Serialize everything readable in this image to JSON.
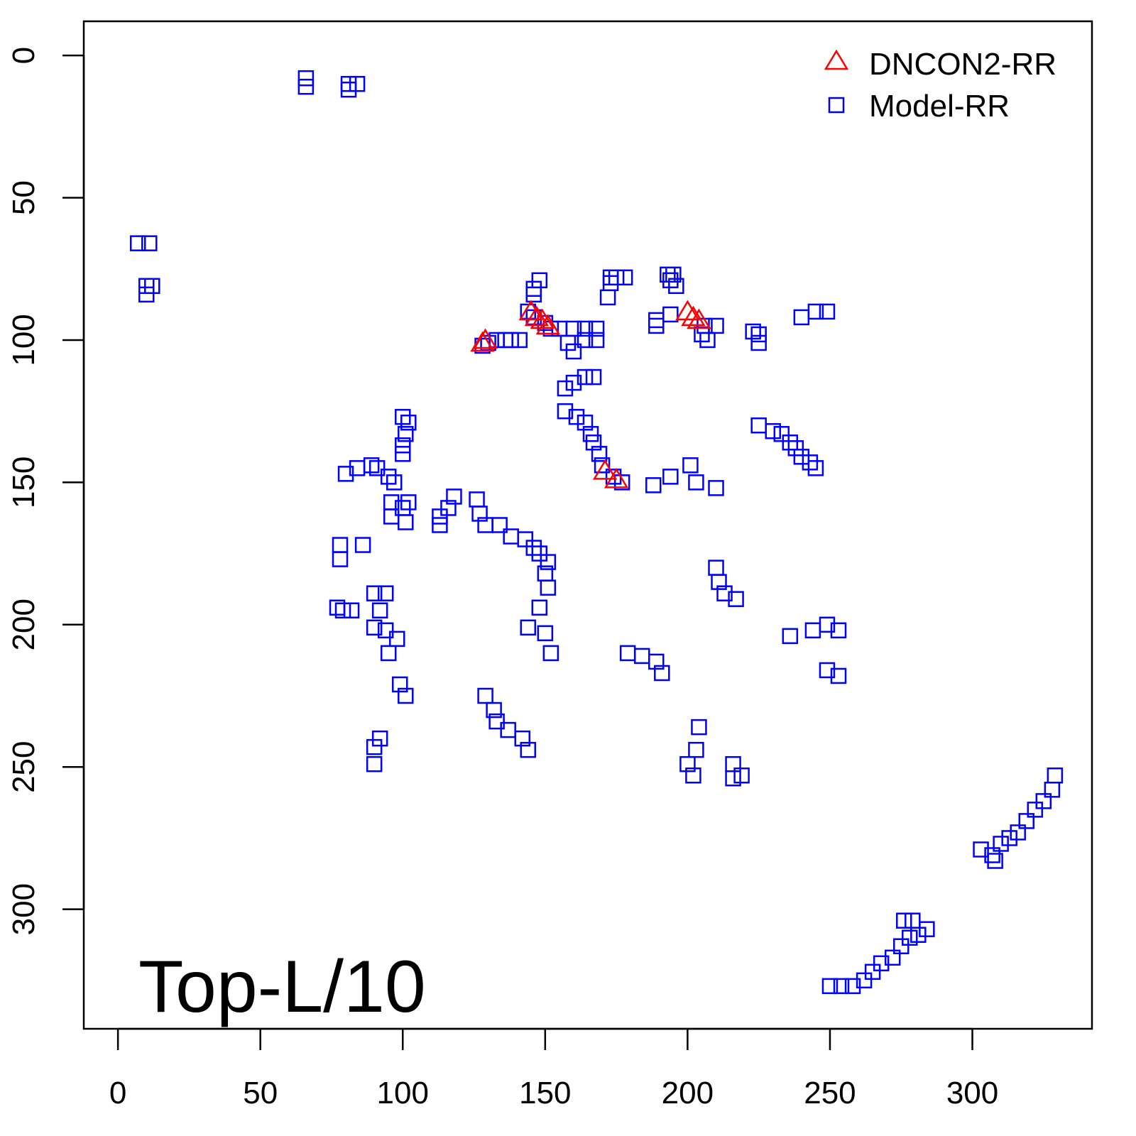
{
  "chart_data": {
    "type": "scatter",
    "title": "",
    "annotation": "Top-L/10",
    "xlabel": "",
    "ylabel": "",
    "xlim": [
      -12,
      342
    ],
    "ylim": [
      342,
      -12
    ],
    "y_inverted": true,
    "grid": false,
    "legend_position": "top-right",
    "x_ticks": [
      0,
      50,
      100,
      150,
      200,
      250,
      300
    ],
    "y_ticks": [
      0,
      50,
      100,
      150,
      200,
      250,
      300
    ],
    "x_tick_labels": [
      "0",
      "50",
      "100",
      "150",
      "200",
      "250",
      "300"
    ],
    "y_tick_labels": [
      "0",
      "50",
      "100",
      "150",
      "200",
      "250",
      "300"
    ],
    "series": [
      {
        "name": "DNCON2-RR",
        "marker": "triangle",
        "color": "#FF0000",
        "points": [
          [
            128,
            101
          ],
          [
            129,
            100
          ],
          [
            145,
            90
          ],
          [
            147,
            92
          ],
          [
            149,
            93
          ],
          [
            151,
            95
          ],
          [
            200,
            90
          ],
          [
            202,
            92
          ],
          [
            204,
            93
          ],
          [
            171,
            146
          ],
          [
            175,
            149
          ]
        ]
      },
      {
        "name": "Model-RR",
        "marker": "square",
        "color": "#0000FF",
        "points": [
          [
            66,
            8
          ],
          [
            66,
            11
          ],
          [
            81,
            10
          ],
          [
            84,
            10
          ],
          [
            81,
            12
          ],
          [
            7,
            66
          ],
          [
            11,
            66
          ],
          [
            10,
            81
          ],
          [
            12,
            81
          ],
          [
            10,
            84
          ],
          [
            128,
            102
          ],
          [
            130,
            101
          ],
          [
            133,
            100
          ],
          [
            136,
            100
          ],
          [
            138,
            100
          ],
          [
            141,
            100
          ],
          [
            148,
            79
          ],
          [
            146,
            82
          ],
          [
            146,
            84
          ],
          [
            144,
            90
          ],
          [
            146,
            92
          ],
          [
            150,
            94
          ],
          [
            152,
            96
          ],
          [
            155,
            96
          ],
          [
            160,
            96
          ],
          [
            164,
            96
          ],
          [
            168,
            96
          ],
          [
            164,
            100
          ],
          [
            168,
            100
          ],
          [
            158,
            101
          ],
          [
            160,
            104
          ],
          [
            173,
            78
          ],
          [
            175,
            78
          ],
          [
            178,
            78
          ],
          [
            173,
            80
          ],
          [
            172,
            85
          ],
          [
            193,
            77
          ],
          [
            195,
            77
          ],
          [
            194,
            79
          ],
          [
            196,
            81
          ],
          [
            189,
            93
          ],
          [
            189,
            95
          ],
          [
            194,
            91
          ],
          [
            206,
            95
          ],
          [
            205,
            98
          ],
          [
            207,
            100
          ],
          [
            210,
            95
          ],
          [
            223,
            97
          ],
          [
            225,
            98
          ],
          [
            225,
            101
          ],
          [
            240,
            92
          ],
          [
            245,
            90
          ],
          [
            249,
            90
          ],
          [
            157,
            117
          ],
          [
            160,
            115
          ],
          [
            164,
            113
          ],
          [
            167,
            113
          ],
          [
            157,
            125
          ],
          [
            161,
            127
          ],
          [
            164,
            129
          ],
          [
            166,
            133
          ],
          [
            167,
            136
          ],
          [
            169,
            140
          ],
          [
            170,
            144
          ],
          [
            174,
            148
          ],
          [
            177,
            150
          ],
          [
            188,
            151
          ],
          [
            194,
            148
          ],
          [
            201,
            144
          ],
          [
            210,
            152
          ],
          [
            203,
            150
          ],
          [
            225,
            130
          ],
          [
            230,
            132
          ],
          [
            233,
            133
          ],
          [
            236,
            136
          ],
          [
            238,
            138
          ],
          [
            240,
            141
          ],
          [
            243,
            143
          ],
          [
            245,
            145
          ],
          [
            100,
            127
          ],
          [
            102,
            129
          ],
          [
            101,
            133
          ],
          [
            100,
            137
          ],
          [
            100,
            140
          ],
          [
            80,
            147
          ],
          [
            84,
            145
          ],
          [
            89,
            144
          ],
          [
            91,
            145
          ],
          [
            95,
            148
          ],
          [
            97,
            150
          ],
          [
            96,
            157
          ],
          [
            96,
            162
          ],
          [
            102,
            157
          ],
          [
            101,
            164
          ],
          [
            100,
            159
          ],
          [
            113,
            162
          ],
          [
            116,
            159
          ],
          [
            118,
            155
          ],
          [
            113,
            165
          ],
          [
            126,
            156
          ],
          [
            127,
            161
          ],
          [
            129,
            165
          ],
          [
            134,
            165
          ],
          [
            138,
            169
          ],
          [
            143,
            170
          ],
          [
            146,
            173
          ],
          [
            148,
            175
          ],
          [
            151,
            178
          ],
          [
            150,
            182
          ],
          [
            151,
            187
          ],
          [
            148,
            194
          ],
          [
            144,
            201
          ],
          [
            150,
            203
          ],
          [
            152,
            210
          ],
          [
            78,
            172
          ],
          [
            78,
            177
          ],
          [
            86,
            172
          ],
          [
            77,
            194
          ],
          [
            79,
            195
          ],
          [
            82,
            195
          ],
          [
            90,
            189
          ],
          [
            94,
            189
          ],
          [
            92,
            195
          ],
          [
            90,
            201
          ],
          [
            94,
            202
          ],
          [
            98,
            205
          ],
          [
            95,
            210
          ],
          [
            99,
            221
          ],
          [
            101,
            225
          ],
          [
            90,
            243
          ],
          [
            92,
            240
          ],
          [
            90,
            249
          ],
          [
            129,
            225
          ],
          [
            132,
            230
          ],
          [
            133,
            234
          ],
          [
            137,
            237
          ],
          [
            142,
            240
          ],
          [
            144,
            244
          ],
          [
            210,
            180
          ],
          [
            211,
            185
          ],
          [
            213,
            189
          ],
          [
            217,
            191
          ],
          [
            179,
            210
          ],
          [
            184,
            211
          ],
          [
            189,
            213
          ],
          [
            191,
            217
          ],
          [
            236,
            204
          ],
          [
            244,
            202
          ],
          [
            249,
            200
          ],
          [
            253,
            202
          ],
          [
            249,
            216
          ],
          [
            253,
            218
          ],
          [
            200,
            249
          ],
          [
            203,
            244
          ],
          [
            204,
            236
          ],
          [
            202,
            253
          ],
          [
            216,
            249
          ],
          [
            216,
            254
          ],
          [
            219,
            253
          ],
          [
            303,
            279
          ],
          [
            307,
            281
          ],
          [
            308,
            283
          ],
          [
            310,
            277
          ],
          [
            313,
            275
          ],
          [
            316,
            273
          ],
          [
            319,
            269
          ],
          [
            322,
            265
          ],
          [
            325,
            262
          ],
          [
            328,
            258
          ],
          [
            329,
            253
          ],
          [
            250,
            327
          ],
          [
            254,
            327
          ],
          [
            258,
            327
          ],
          [
            262,
            325
          ],
          [
            265,
            322
          ],
          [
            268,
            319
          ],
          [
            272,
            317
          ],
          [
            275,
            313
          ],
          [
            278,
            310
          ],
          [
            281,
            309
          ],
          [
            284,
            307
          ],
          [
            276,
            304
          ],
          [
            279,
            304
          ]
        ]
      }
    ]
  }
}
